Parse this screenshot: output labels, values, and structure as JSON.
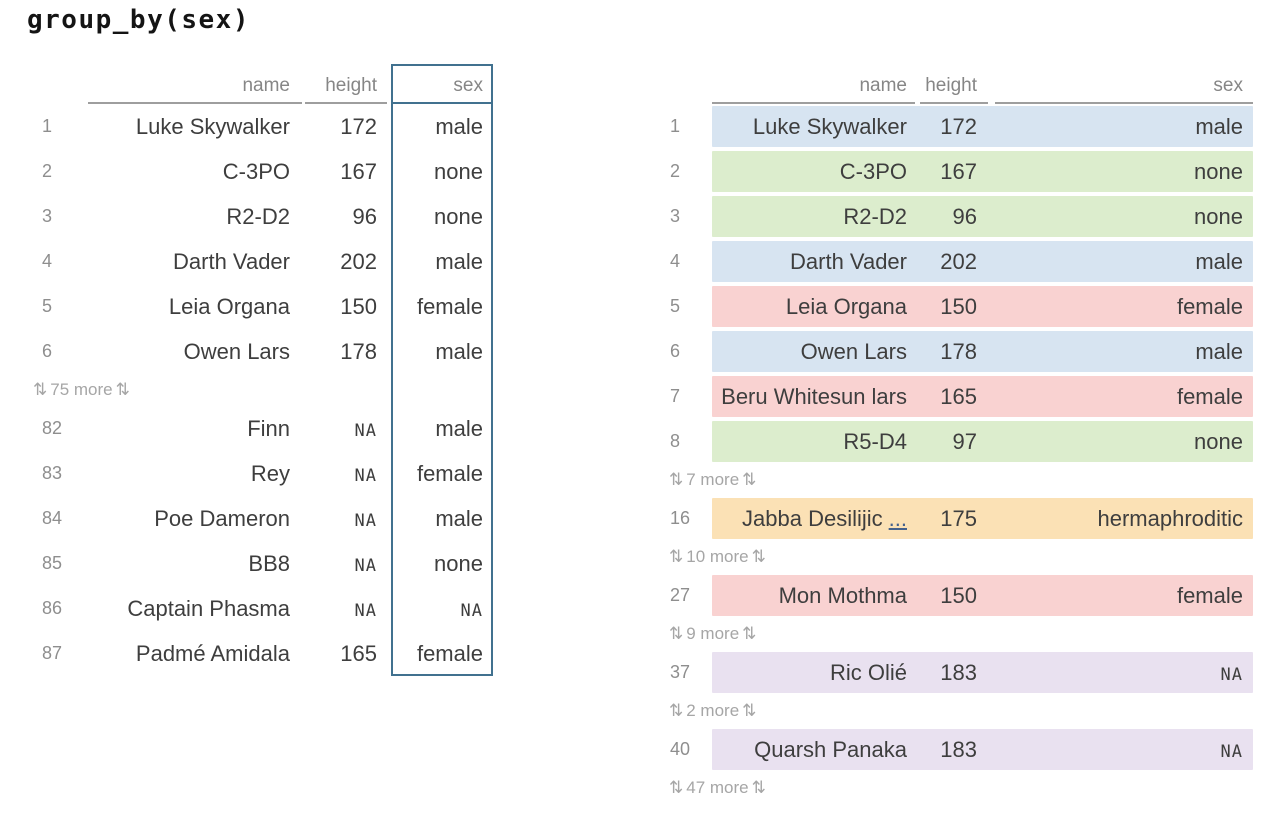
{
  "title": "group_by(sex)",
  "columns": [
    "name",
    "height",
    "sex"
  ],
  "icons": {
    "updown_arrow": "⇅"
  },
  "colors": {
    "highlight_border": "#41718f",
    "header_underline": "#9e9e9e",
    "truncation_link": "#44618c",
    "groups": {
      "male": "#d7e4f1",
      "none": "#dcedcd",
      "female": "#f9d2d1",
      "hermaphroditic": "#fbe1b5",
      "na": "#e9e1f0"
    }
  },
  "left_table": {
    "rows": [
      {
        "type": "data",
        "n": "1",
        "name": "Luke Skywalker",
        "height": "172",
        "sex": "male"
      },
      {
        "type": "data",
        "n": "2",
        "name": "C-3PO",
        "height": "167",
        "sex": "none"
      },
      {
        "type": "data",
        "n": "3",
        "name": "R2-D2",
        "height": "96",
        "sex": "none"
      },
      {
        "type": "data",
        "n": "4",
        "name": "Darth Vader",
        "height": "202",
        "sex": "male"
      },
      {
        "type": "data",
        "n": "5",
        "name": "Leia Organa",
        "height": "150",
        "sex": "female"
      },
      {
        "type": "data",
        "n": "6",
        "name": "Owen Lars",
        "height": "178",
        "sex": "male"
      },
      {
        "type": "more",
        "label": "75 more"
      },
      {
        "type": "data",
        "n": "82",
        "name": "Finn",
        "height": "NA",
        "sex": "male"
      },
      {
        "type": "data",
        "n": "83",
        "name": "Rey",
        "height": "NA",
        "sex": "female"
      },
      {
        "type": "data",
        "n": "84",
        "name": "Poe Dameron",
        "height": "NA",
        "sex": "male"
      },
      {
        "type": "data",
        "n": "85",
        "name": "BB8",
        "height": "NA",
        "sex": "none"
      },
      {
        "type": "data",
        "n": "86",
        "name": "Captain Phasma",
        "height": "NA",
        "sex": "NA"
      },
      {
        "type": "data",
        "n": "87",
        "name": "Padmé Amidala",
        "height": "165",
        "sex": "female"
      }
    ]
  },
  "right_table": {
    "rows": [
      {
        "type": "data",
        "n": "1",
        "name": "Luke Skywalker",
        "height": "172",
        "sex": "male",
        "group": "male"
      },
      {
        "type": "data",
        "n": "2",
        "name": "C-3PO",
        "height": "167",
        "sex": "none",
        "group": "none"
      },
      {
        "type": "data",
        "n": "3",
        "name": "R2-D2",
        "height": "96",
        "sex": "none",
        "group": "none"
      },
      {
        "type": "data",
        "n": "4",
        "name": "Darth Vader",
        "height": "202",
        "sex": "male",
        "group": "male"
      },
      {
        "type": "data",
        "n": "5",
        "name": "Leia Organa",
        "height": "150",
        "sex": "female",
        "group": "female"
      },
      {
        "type": "data",
        "n": "6",
        "name": "Owen Lars",
        "height": "178",
        "sex": "male",
        "group": "male"
      },
      {
        "type": "data",
        "n": "7",
        "name": "Beru Whitesun lars",
        "height": "165",
        "sex": "female",
        "group": "female"
      },
      {
        "type": "data",
        "n": "8",
        "name": "R5-D4",
        "height": "97",
        "sex": "none",
        "group": "none"
      },
      {
        "type": "more",
        "label": "7 more"
      },
      {
        "type": "data",
        "n": "16",
        "name": "Jabba Desilijic",
        "ellipsis": "...",
        "height": "175",
        "sex": "hermaphroditic",
        "group": "hermaphroditic"
      },
      {
        "type": "more",
        "label": "10 more"
      },
      {
        "type": "data",
        "n": "27",
        "name": "Mon Mothma",
        "height": "150",
        "sex": "female",
        "group": "female"
      },
      {
        "type": "more",
        "label": "9 more"
      },
      {
        "type": "data",
        "n": "37",
        "name": "Ric Olié",
        "height": "183",
        "sex": "NA",
        "group": "na"
      },
      {
        "type": "more",
        "label": "2 more"
      },
      {
        "type": "data",
        "n": "40",
        "name": "Quarsh Panaka",
        "height": "183",
        "sex": "NA",
        "group": "na"
      },
      {
        "type": "more",
        "label": "47 more"
      }
    ]
  }
}
